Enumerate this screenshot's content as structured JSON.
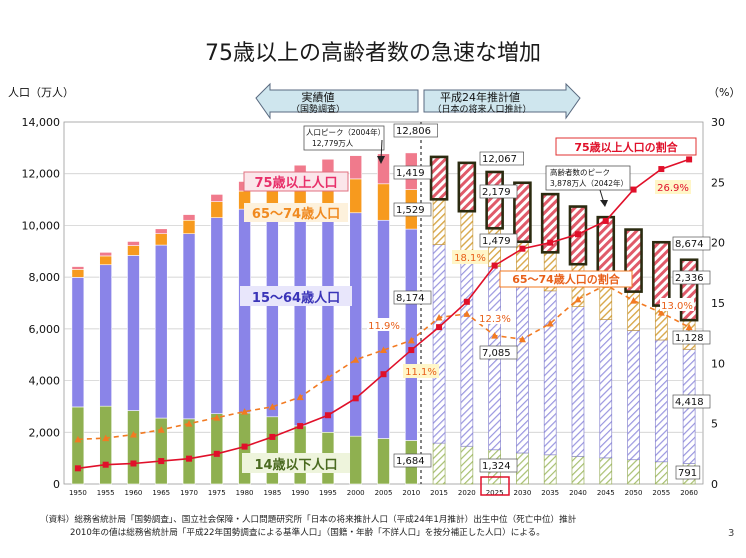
{
  "page_number": "3",
  "colors": {
    "age0_14": "#8fb050",
    "age15_64": "#8a84e8",
    "age65_74": "#f79a1e",
    "age75": "#f07a8c",
    "total_line": "#e0102a",
    "ratio65_74_line": "#f27a22",
    "est_frame": "#2b2b10",
    "est_hatch": "#e05a6a"
  },
  "chart_data": {
    "type": "bar",
    "title": "75歳以上の高齢者数の急速な増加",
    "ylabel_left": "人口（万人）",
    "ylabel_right": "（%）",
    "ylim_left": [
      0,
      14000
    ],
    "ylim_right": [
      0,
      30
    ],
    "yticks_left": [
      "0",
      "2,000",
      "4,000",
      "6,000",
      "8,000",
      "10,000",
      "12,000",
      "14,000"
    ],
    "yticks_right": [
      "0",
      "5",
      "10",
      "15",
      "20",
      "25",
      "30"
    ],
    "categories": [
      "1950",
      "1955",
      "1960",
      "1965",
      "1970",
      "1975",
      "1980",
      "1985",
      "1990",
      "1995",
      "2000",
      "2005",
      "2010",
      "2015",
      "2020",
      "2025",
      "2030",
      "2035",
      "2040",
      "2045",
      "2050",
      "2055",
      "2060"
    ],
    "actual_count": 13,
    "series": [
      {
        "name": "14歳以下人口",
        "values": [
          2980,
          3010,
          2840,
          2550,
          2520,
          2720,
          2750,
          2600,
          2250,
          2000,
          1850,
          1760,
          1684,
          1580,
          1460,
          1324,
          1200,
          1130,
          1070,
          1010,
          940,
          860,
          791
        ]
      },
      {
        "name": "15〜64歳人口",
        "values": [
          5010,
          5470,
          6000,
          6690,
          7160,
          7580,
          7880,
          8250,
          8590,
          8730,
          8640,
          8440,
          8174,
          7680,
          7340,
          7085,
          6770,
          6340,
          5790,
          5350,
          5000,
          4710,
          4418
        ]
      },
      {
        "name": "65〜74歳人口",
        "values": [
          310,
          340,
          380,
          440,
          520,
          620,
          700,
          770,
          890,
          1110,
          1310,
          1410,
          1529,
          1750,
          1750,
          1479,
          1400,
          1490,
          1640,
          1700,
          1500,
          1330,
          1128
        ]
      },
      {
        "name": "75歳以上人口",
        "values": [
          110,
          140,
          160,
          190,
          220,
          280,
          370,
          470,
          600,
          720,
          900,
          1160,
          1419,
          1640,
          1870,
          2179,
          2280,
          2250,
          2230,
          2260,
          2400,
          2450,
          2336
        ]
      }
    ],
    "totals": [
      8400,
      8960,
      9380,
      9870,
      10420,
      11190,
      11700,
      12090,
      12330,
      12560,
      12700,
      12770,
      12806,
      12660,
      12410,
      12067,
      11660,
      11210,
      10730,
      10320,
      9840,
      9350,
      8674
    ],
    "ratio_75": {
      "name": "75歳以上人口の割合",
      "values": [
        1.3,
        1.6,
        1.7,
        1.9,
        2.1,
        2.5,
        3.1,
        3.9,
        4.8,
        5.7,
        7.1,
        9.1,
        11.1,
        13.0,
        15.1,
        18.1,
        19.5,
        20.0,
        20.7,
        21.8,
        24.4,
        26.1,
        26.9
      ]
    },
    "ratio_65_74": {
      "name": "65〜74歳人口の割合",
      "values": [
        3.7,
        3.8,
        4.1,
        4.5,
        5.0,
        5.5,
        6.0,
        6.4,
        7.2,
        8.8,
        10.3,
        11.1,
        11.9,
        13.8,
        14.1,
        12.3,
        12.0,
        13.3,
        15.3,
        16.5,
        15.2,
        14.2,
        13.0
      ]
    },
    "bar_labels": {
      "total_2010": "12,806",
      "age75_2010": "1,419",
      "age65_74_2010": "1,529",
      "age15_64_2010": "8,174",
      "age0_14_2010": "1,684",
      "total_2025": "12,067",
      "age75_2025": "2,179",
      "age65_74_2025": "1,479",
      "age15_64_2025": "7,085",
      "age0_14_2025": "1,324",
      "total_2060": "8,674",
      "age75_2060": "2,336",
      "age65_74_2060": "1,128",
      "age15_64_2060": "4,418",
      "age0_14_2060": "791"
    },
    "ratio_labels": {
      "r75_2010": "11.1%",
      "r6574_2010": "11.9%",
      "r75_2025": "18.1%",
      "r6574_2025": "12.3%",
      "r75_2060": "26.9%",
      "r6574_2060": "13.0%"
    },
    "legend": {
      "age75": "75歳以上人口",
      "age65_74": "65〜74歳人口",
      "age15_64": "15〜64歳人口",
      "age0_14": "14歳以下人口",
      "ratio75": "75歳以上人口の割合",
      "ratio65_74": "65〜74歳人口の割合"
    },
    "periods": {
      "actual": {
        "title": "実績値",
        "sub": "（国勢調査）"
      },
      "estimate": {
        "title": "平成24年推計値",
        "sub": "（日本の将来人口推計）"
      }
    },
    "callouts": {
      "peak_population": [
        "人口ピーク（2004年）",
        "12,779万人"
      ],
      "peak_elderly": [
        "高齢者数のピーク",
        "3,878万人（2042年）"
      ]
    },
    "highlight_year": "2025",
    "source": [
      "（資料）総務省統計局「国勢調査」、国立社会保障・人口問題研究所「日本の将来推計人口（平成24年1月推計）出生中位（死亡中位）推計",
      "2010年の値は総務省統計局「平成22年国勢調査による基準人口」（国籍・年齢「不詳人口」を按分補正した人口）による。"
    ]
  }
}
